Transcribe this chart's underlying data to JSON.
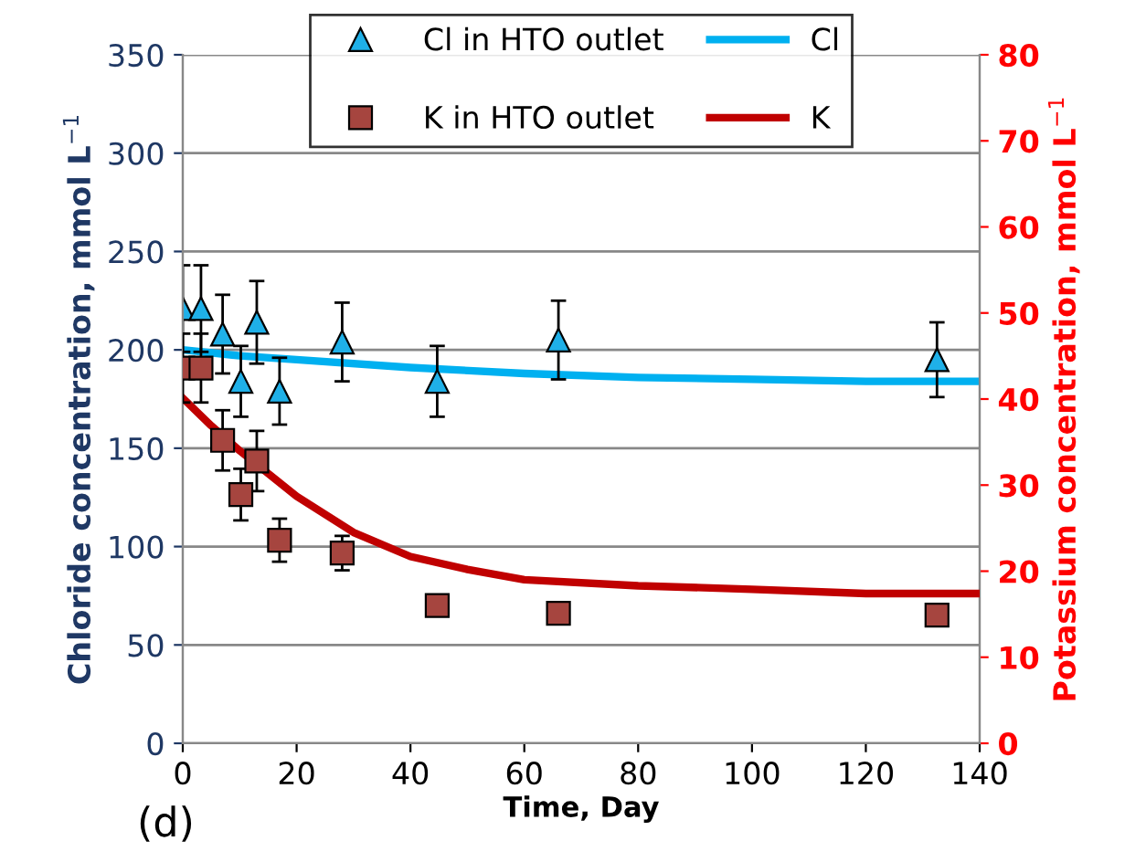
{
  "chart_data": {
    "type": "scatter",
    "xlabel": "Time, Day",
    "ylabel": "Chloride concentration, mmol L$^{−1}$",
    "y2label": "Potassium concentration, mmol L$^{−1}$",
    "annotations": [
      "(d)"
    ],
    "xlim": [
      0,
      140
    ],
    "xticks": [
      0,
      20,
      40,
      60,
      80,
      100,
      120,
      140
    ],
    "ylim": [
      0,
      350
    ],
    "yticks": [
      0,
      50,
      100,
      150,
      200,
      250,
      300,
      350
    ],
    "y2lim": [
      0,
      80
    ],
    "y2ticks": [
      0,
      10,
      20,
      30,
      40,
      50,
      60,
      70,
      80
    ],
    "grid": "y",
    "legend": "top",
    "series": [
      {
        "name": "Cl in HTO outlet",
        "marker": "triangle",
        "color": "#1fb0e8",
        "x": [
          0,
          3.2,
          7,
          10.2,
          13,
          17,
          28,
          44.7,
          66,
          132.5
        ],
        "values": [
          221,
          221,
          208,
          184,
          214,
          179,
          204,
          184,
          205,
          195
        ],
        "errors": [
          22,
          22,
          20,
          18,
          21,
          17,
          20,
          18,
          20,
          19
        ]
      },
      {
        "name": "Cl",
        "type": "line",
        "marker": "none",
        "color": "#00b0f0",
        "x": [
          0,
          10,
          20,
          40,
          60,
          80,
          100,
          120,
          140
        ],
        "values": [
          200,
          197,
          195,
          191,
          188,
          186,
          185,
          184,
          184
        ]
      },
      {
        "name": "K in HTO outlet",
        "marker": "square",
        "axis": "y2",
        "color": "#a6453f",
        "x": [
          0,
          3.2,
          7,
          10.2,
          13,
          17,
          28,
          44.7,
          66,
          132.5
        ],
        "values": [
          43.6,
          43.6,
          35.2,
          28.9,
          32.8,
          23.6,
          22.1,
          16.0,
          15.1,
          14.9
        ],
        "errors": [
          4,
          4,
          3.5,
          3,
          3.5,
          2.5,
          2,
          1,
          1,
          1
        ]
      },
      {
        "name": "K",
        "type": "line",
        "marker": "none",
        "axis": "y2",
        "color": "#c00000",
        "x": [
          0,
          5,
          10,
          20,
          30,
          40,
          50,
          60,
          80,
          100,
          120,
          140
        ],
        "values": [
          40.1,
          36.9,
          34.0,
          28.7,
          24.5,
          21.7,
          20.2,
          19.0,
          18.3,
          17.9,
          17.4,
          17.4
        ]
      }
    ]
  }
}
